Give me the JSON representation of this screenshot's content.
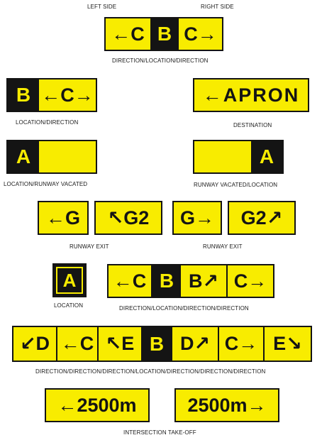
{
  "colors": {
    "sign_yellow": "#f8ec00",
    "sign_black": "#141414"
  },
  "side_labels": {
    "left": "LEFT SIDE",
    "right": "RIGHT SIDE"
  },
  "sign1": {
    "left": "←C",
    "location": "B",
    "right": "C→",
    "caption": "DIRECTION/LOCATION/DIRECTION"
  },
  "sign2": {
    "location": "B",
    "direction": "←C→",
    "caption": "LOCATION/DIRECTION"
  },
  "sign3": {
    "text": "←APRON",
    "caption": "DESTINATION"
  },
  "sign4": {
    "location": "A",
    "caption": "LOCATION/RUNWAY VACATED"
  },
  "sign5": {
    "location": "A",
    "caption": "RUNWAY VACATED/LOCATION"
  },
  "sign6": {
    "left": "←G",
    "right": "↖G2",
    "caption": "RUNWAY EXIT"
  },
  "sign7": {
    "left": "G→",
    "right": "G2↗",
    "caption": "RUNWAY EXIT"
  },
  "sign8": {
    "location": "A",
    "caption": "LOCATION"
  },
  "sign9": {
    "seg1": "←C",
    "location": "B",
    "seg3": "B↗",
    "seg4": "C→",
    "caption": "DIRECTION/LOCATION/DIRECTION/DIRECTION"
  },
  "sign10": {
    "segments": [
      "↙D",
      "←C",
      "↖E",
      "B",
      "D↗",
      "C→",
      "E↘"
    ],
    "caption": "DIRECTION/DIRECTION/DIRECTION/LOCATION/DIRECTION/DIRECTION/DIRECTION"
  },
  "sign11": {
    "left": "←2500m",
    "right": "2500m→",
    "caption": "INTERSECTION TAKE-OFF"
  }
}
